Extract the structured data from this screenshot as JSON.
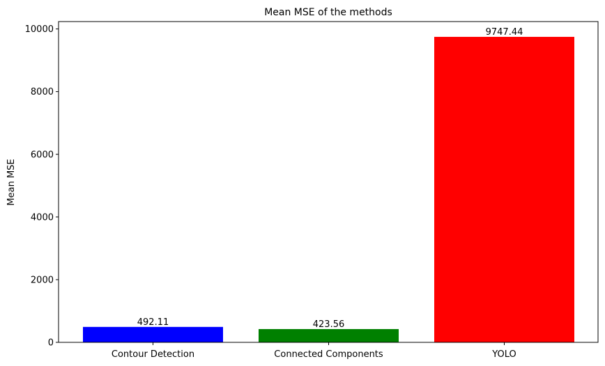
{
  "chart_data": {
    "type": "bar",
    "title": "Mean MSE of the methods",
    "xlabel": "",
    "ylabel": "Mean MSE",
    "categories": [
      "Contour Detection",
      "Connected Components",
      "YOLO"
    ],
    "values": [
      492.11,
      423.56,
      9747.44
    ],
    "data_labels": [
      "492.11",
      "423.56",
      "9747.44"
    ],
    "colors": [
      "#0000ff",
      "#008000",
      "#ff0000"
    ],
    "ylim": [
      0,
      10235
    ],
    "yticks": [
      0,
      2000,
      4000,
      6000,
      8000,
      10000
    ],
    "ytick_labels": [
      "0",
      "2000",
      "4000",
      "6000",
      "8000",
      "10000"
    ],
    "grid": false,
    "legend": "none"
  }
}
